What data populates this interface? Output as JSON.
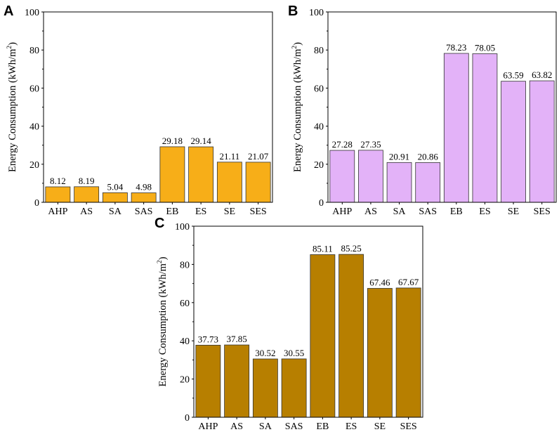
{
  "chart_data": [
    {
      "panel": "A",
      "type": "bar",
      "categories": [
        "AHP",
        "AS",
        "SA",
        "SAS",
        "EB",
        "ES",
        "SE",
        "SES"
      ],
      "values": [
        8.12,
        8.19,
        5.04,
        4.98,
        29.18,
        29.14,
        21.11,
        21.07
      ],
      "value_labels": [
        "8.12",
        "8.19",
        "5.04",
        "4.98",
        "29.18",
        "29.14",
        "21.11",
        "21.07"
      ],
      "ylabel_main": "Energy Consumption (kWh/m",
      "ylabel_sup": "2",
      "ylabel_end": ")",
      "ylim": [
        0,
        100
      ],
      "yticks": [
        0,
        20,
        40,
        60,
        80,
        100
      ],
      "bar_color": "#F7AE18"
    },
    {
      "panel": "B",
      "type": "bar",
      "categories": [
        "AHP",
        "AS",
        "SA",
        "SAS",
        "EB",
        "ES",
        "SE",
        "SES"
      ],
      "values": [
        27.28,
        27.35,
        20.91,
        20.86,
        78.23,
        78.05,
        63.59,
        63.82
      ],
      "value_labels": [
        "27.28",
        "27.35",
        "20.91",
        "20.86",
        "78.23",
        "78.05",
        "63.59",
        "63.82"
      ],
      "ylabel_main": "Energy Consumption (kWh/m",
      "ylabel_sup": "2",
      "ylabel_end": ")",
      "ylim": [
        0,
        100
      ],
      "yticks": [
        0,
        20,
        40,
        60,
        80,
        100
      ],
      "bar_color": "#E3B2F8"
    },
    {
      "panel": "C",
      "type": "bar",
      "categories": [
        "AHP",
        "AS",
        "SA",
        "SAS",
        "EB",
        "ES",
        "SE",
        "SES"
      ],
      "values": [
        37.73,
        37.85,
        30.52,
        30.55,
        85.11,
        85.25,
        67.46,
        67.67
      ],
      "value_labels": [
        "37.73",
        "37.85",
        "30.52",
        "30.55",
        "85.11",
        "85.25",
        "67.46",
        "67.67"
      ],
      "ylabel_main": "Energy Consumption (kWh/m",
      "ylabel_sup": "2",
      "ylabel_end": ")",
      "ylim": [
        0,
        100
      ],
      "yticks": [
        0,
        20,
        40,
        60,
        80,
        100
      ],
      "bar_color": "#B77F00"
    }
  ]
}
